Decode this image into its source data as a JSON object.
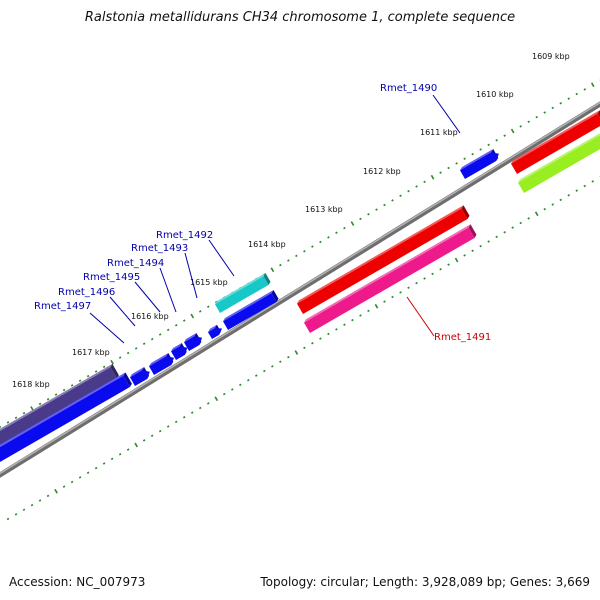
{
  "title": "Ralstonia metallidurans CH34 chromosome 1, complete sequence",
  "footer": {
    "accession": "Accession: NC_007973",
    "summary": "Topology: circular; Length: 3,928,089 bp; Genes: 3,669"
  },
  "colors": {
    "backbone": "#8c8c8c",
    "tick": "#2e8b2e",
    "label_forward": "#0000aa",
    "label_reverse": "#cc0000"
  },
  "kbp_labels": [
    "1609 kbp",
    "1610 kbp",
    "1611 kbp",
    "1612 kbp",
    "1613 kbp",
    "1614 kbp",
    "1615 kbp",
    "1616 kbp",
    "1617 kbp",
    "1618 kbp"
  ],
  "gene_labels": [
    {
      "id": "Rmet_1490",
      "color": "#0000aa"
    },
    {
      "id": "Rmet_1491",
      "color": "#cc0000"
    },
    {
      "id": "Rmet_1492",
      "color": "#0000aa"
    },
    {
      "id": "Rmet_1493",
      "color": "#0000aa"
    },
    {
      "id": "Rmet_1494",
      "color": "#0000aa"
    },
    {
      "id": "Rmet_1495",
      "color": "#0000aa"
    },
    {
      "id": "Rmet_1496",
      "color": "#0000aa"
    },
    {
      "id": "Rmet_1497",
      "color": "#0000aa"
    }
  ],
  "feature_colors": {
    "cds_blue": "#0a0aee",
    "cds_red": "#ee0000",
    "cds_pink": "#ee1a8c",
    "cds_cyan": "#18c8c8",
    "cds_lime": "#99ee22",
    "cds_slate": "#4a3a8a"
  }
}
